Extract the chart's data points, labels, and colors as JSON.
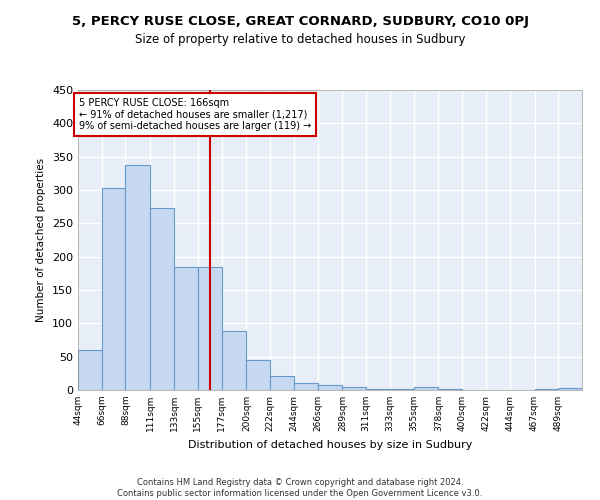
{
  "title": "5, PERCY RUSE CLOSE, GREAT CORNARD, SUDBURY, CO10 0PJ",
  "subtitle": "Size of property relative to detached houses in Sudbury",
  "xlabel": "Distribution of detached houses by size in Sudbury",
  "ylabel": "Number of detached properties",
  "bar_color": "#c6d9f0",
  "bar_edge_color": "#6699cc",
  "background_color": "#e8eef7",
  "grid_color": "#ffffff",
  "annotation_line_color": "#cc0000",
  "annotation_box_color": "#cc0000",
  "annotation_text": "5 PERCY RUSE CLOSE: 166sqm\n← 91% of detached houses are smaller (1,217)\n9% of semi-detached houses are larger (119) →",
  "property_size": 166,
  "footer": "Contains HM Land Registry data © Crown copyright and database right 2024.\nContains public sector information licensed under the Open Government Licence v3.0.",
  "bin_labels": [
    "44sqm",
    "66sqm",
    "88sqm",
    "111sqm",
    "133sqm",
    "155sqm",
    "177sqm",
    "200sqm",
    "222sqm",
    "244sqm",
    "266sqm",
    "289sqm",
    "311sqm",
    "333sqm",
    "355sqm",
    "378sqm",
    "400sqm",
    "422sqm",
    "444sqm",
    "467sqm",
    "489sqm"
  ],
  "bin_edges": [
    44,
    66,
    88,
    111,
    133,
    155,
    177,
    200,
    222,
    244,
    266,
    289,
    311,
    333,
    355,
    378,
    400,
    422,
    444,
    467,
    489,
    511
  ],
  "bar_heights": [
    60,
    303,
    337,
    273,
    185,
    185,
    88,
    45,
    21,
    11,
    7,
    4,
    2,
    2,
    4,
    2,
    0,
    0,
    0,
    2,
    3
  ],
  "ylim": [
    0,
    450
  ],
  "yticks": [
    0,
    50,
    100,
    150,
    200,
    250,
    300,
    350,
    400,
    450
  ]
}
